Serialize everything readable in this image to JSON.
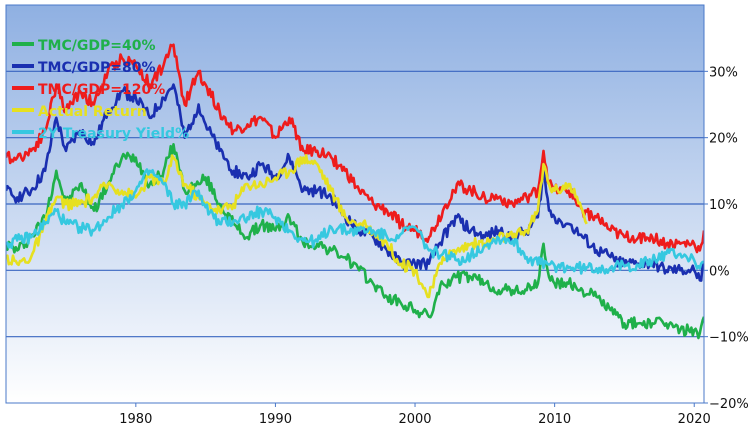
{
  "chart_data": {
    "type": "line",
    "title": "",
    "xlabel": "",
    "ylabel": "",
    "xlim": [
      1970.7,
      2020.7
    ],
    "ylim": [
      -20,
      40
    ],
    "x_ticks": [
      {
        "value": 1980,
        "label": "1980"
      },
      {
        "value": 1990,
        "label": "1990"
      },
      {
        "value": 2000,
        "label": "2000"
      },
      {
        "value": 2010,
        "label": "2010"
      },
      {
        "value": 2020,
        "label": "2020"
      }
    ],
    "y_ticks": [
      {
        "value": 30,
        "label": "30%"
      },
      {
        "value": 20,
        "label": "20%"
      },
      {
        "value": 10,
        "label": "10%"
      },
      {
        "value": 0,
        "label": "0%"
      },
      {
        "value": -10,
        "label": "−10%"
      },
      {
        "value": -20,
        "label": "−20%"
      }
    ],
    "grid": {
      "horizontal": true,
      "vertical": false
    },
    "legend_position": "top-left",
    "background_gradient": [
      "#8fb0e2",
      "#ffffff"
    ],
    "series": [
      {
        "name": "TMC/GDP=40%",
        "color": "#1fb04a",
        "points": [
          [
            1970.7,
            4
          ],
          [
            1971.5,
            3
          ],
          [
            1972.5,
            5
          ],
          [
            1973.5,
            8
          ],
          [
            1974.3,
            15
          ],
          [
            1975,
            10
          ],
          [
            1976,
            13
          ],
          [
            1977,
            9
          ],
          [
            1978,
            13
          ],
          [
            1979,
            17
          ],
          [
            1980,
            17
          ],
          [
            1981,
            13
          ],
          [
            1982,
            15
          ],
          [
            1982.7,
            19
          ],
          [
            1983.5,
            12
          ],
          [
            1984.5,
            13
          ],
          [
            1985,
            14
          ],
          [
            1986,
            10
          ],
          [
            1987,
            7
          ],
          [
            1988,
            5
          ],
          [
            1989,
            7
          ],
          [
            1990,
            6
          ],
          [
            1991,
            8
          ],
          [
            1992,
            4
          ],
          [
            1993,
            4
          ],
          [
            1994,
            3
          ],
          [
            1995,
            2
          ],
          [
            1996,
            0
          ],
          [
            1997,
            -2
          ],
          [
            1998,
            -4
          ],
          [
            1999,
            -5
          ],
          [
            2000,
            -6
          ],
          [
            2001,
            -7
          ],
          [
            2002,
            -2
          ],
          [
            2003,
            -1
          ],
          [
            2004,
            -1
          ],
          [
            2005,
            -2
          ],
          [
            2006,
            -3
          ],
          [
            2007,
            -3
          ],
          [
            2008,
            -3
          ],
          [
            2008.8,
            -2
          ],
          [
            2009.2,
            4
          ],
          [
            2009.6,
            -1
          ],
          [
            2010,
            -2
          ],
          [
            2011,
            -2
          ],
          [
            2012,
            -3
          ],
          [
            2013,
            -4
          ],
          [
            2014,
            -6
          ],
          [
            2015,
            -8
          ],
          [
            2016,
            -8
          ],
          [
            2017,
            -8
          ],
          [
            2018,
            -8
          ],
          [
            2019,
            -9
          ],
          [
            2020,
            -9
          ],
          [
            2020.4,
            -9.5
          ],
          [
            2020.7,
            -7
          ]
        ]
      },
      {
        "name": "TMC/GDP=80%",
        "color": "#1a2fb0",
        "points": [
          [
            1970.7,
            12
          ],
          [
            1971.5,
            11
          ],
          [
            1972.5,
            12
          ],
          [
            1973.5,
            15
          ],
          [
            1974.3,
            23
          ],
          [
            1975,
            18
          ],
          [
            1976,
            21
          ],
          [
            1977,
            19
          ],
          [
            1978,
            24
          ],
          [
            1979,
            27
          ],
          [
            1980,
            26
          ],
          [
            1981,
            23
          ],
          [
            1982,
            26
          ],
          [
            1982.7,
            28
          ],
          [
            1983.5,
            20
          ],
          [
            1984.5,
            25
          ],
          [
            1985,
            22
          ],
          [
            1986,
            18
          ],
          [
            1987,
            15
          ],
          [
            1988,
            14
          ],
          [
            1989,
            16
          ],
          [
            1990,
            14
          ],
          [
            1991,
            17
          ],
          [
            1992,
            12
          ],
          [
            1993,
            12
          ],
          [
            1994,
            11
          ],
          [
            1995,
            8
          ],
          [
            1996,
            6
          ],
          [
            1997,
            5
          ],
          [
            1998,
            3
          ],
          [
            1999,
            1
          ],
          [
            2000,
            1
          ],
          [
            2001,
            1
          ],
          [
            2002,
            5
          ],
          [
            2003,
            8
          ],
          [
            2004,
            6
          ],
          [
            2005,
            5
          ],
          [
            2006,
            6
          ],
          [
            2007,
            5
          ],
          [
            2008,
            6
          ],
          [
            2008.8,
            8
          ],
          [
            2009.2,
            15
          ],
          [
            2009.6,
            9
          ],
          [
            2010,
            8
          ],
          [
            2011,
            7
          ],
          [
            2012,
            5
          ],
          [
            2013,
            3
          ],
          [
            2014,
            2
          ],
          [
            2015,
            1
          ],
          [
            2016,
            1
          ],
          [
            2017,
            1
          ],
          [
            2018,
            0
          ],
          [
            2019,
            0
          ],
          [
            2020,
            0
          ],
          [
            2020.4,
            -1.5
          ],
          [
            2020.7,
            1
          ]
        ]
      },
      {
        "name": "TMC/GDP=120%",
        "color": "#ee1c1c",
        "points": [
          [
            1970.7,
            17
          ],
          [
            1971.5,
            17
          ],
          [
            1972.5,
            18
          ],
          [
            1973.5,
            21
          ],
          [
            1974.3,
            28
          ],
          [
            1975,
            24
          ],
          [
            1976,
            27
          ],
          [
            1977,
            25
          ],
          [
            1978,
            30
          ],
          [
            1979,
            32
          ],
          [
            1980,
            31
          ],
          [
            1981,
            28
          ],
          [
            1982,
            31
          ],
          [
            1982.7,
            34
          ],
          [
            1983.5,
            25
          ],
          [
            1984.5,
            30
          ],
          [
            1985,
            28
          ],
          [
            1986,
            24
          ],
          [
            1987,
            21
          ],
          [
            1988,
            22
          ],
          [
            1989,
            23
          ],
          [
            1990,
            20
          ],
          [
            1991,
            23
          ],
          [
            1992,
            18
          ],
          [
            1993,
            18
          ],
          [
            1994,
            17
          ],
          [
            1995,
            15
          ],
          [
            1996,
            12
          ],
          [
            1997,
            10
          ],
          [
            1998,
            9
          ],
          [
            1999,
            7
          ],
          [
            2000,
            6
          ],
          [
            2001,
            5
          ],
          [
            2002,
            9
          ],
          [
            2003,
            13
          ],
          [
            2004,
            12
          ],
          [
            2005,
            11
          ],
          [
            2006,
            11
          ],
          [
            2007,
            10
          ],
          [
            2008,
            11
          ],
          [
            2008.8,
            12
          ],
          [
            2009.2,
            18
          ],
          [
            2009.6,
            13
          ],
          [
            2010,
            12
          ],
          [
            2011,
            12
          ],
          [
            2012,
            9
          ],
          [
            2013,
            8
          ],
          [
            2014,
            6
          ],
          [
            2015,
            5
          ],
          [
            2016,
            5
          ],
          [
            2017,
            5
          ],
          [
            2018,
            4
          ],
          [
            2019,
            4
          ],
          [
            2020,
            4
          ],
          [
            2020.4,
            3
          ],
          [
            2020.7,
            6
          ]
        ]
      },
      {
        "name": "Actual Return",
        "color": "#e6e020",
        "points": [
          [
            1970.7,
            2
          ],
          [
            1971.5,
            1
          ],
          [
            1972.5,
            2
          ],
          [
            1973.5,
            7
          ],
          [
            1974.3,
            11
          ],
          [
            1975,
            10
          ],
          [
            1976,
            10
          ],
          [
            1977,
            11
          ],
          [
            1978,
            13
          ],
          [
            1979,
            12
          ],
          [
            1980,
            11
          ],
          [
            1981,
            14
          ],
          [
            1982,
            13
          ],
          [
            1982.7,
            17
          ],
          [
            1983.5,
            13
          ],
          [
            1984.5,
            11
          ],
          [
            1985,
            10
          ],
          [
            1986,
            9
          ],
          [
            1987,
            10
          ],
          [
            1988,
            13
          ],
          [
            1989,
            13
          ],
          [
            1990,
            14
          ],
          [
            1991,
            15
          ],
          [
            1992,
            17
          ],
          [
            1993,
            16
          ],
          [
            1994,
            12
          ],
          [
            1995,
            8
          ],
          [
            1996,
            7
          ],
          [
            1997,
            6
          ],
          [
            1998,
            4
          ],
          [
            1999,
            1
          ],
          [
            2000,
            0
          ],
          [
            2001,
            -4
          ],
          [
            2002,
            2
          ],
          [
            2003,
            3
          ],
          [
            2004,
            4
          ],
          [
            2005,
            4
          ],
          [
            2006,
            5
          ],
          [
            2007,
            5
          ],
          [
            2008,
            6
          ],
          [
            2008.8,
            9
          ],
          [
            2009.2,
            16
          ],
          [
            2009.6,
            13
          ],
          [
            2010,
            12
          ],
          [
            2011,
            13
          ],
          [
            2012,
            9
          ],
          [
            2012.3,
            7
          ]
        ]
      },
      {
        "name": "2Y Treasury Yield%",
        "color": "#36c8e0",
        "points": [
          [
            1970.7,
            4
          ],
          [
            1971.5,
            4.5
          ],
          [
            1972.5,
            5
          ],
          [
            1973.5,
            7
          ],
          [
            1974.3,
            9
          ],
          [
            1975,
            7
          ],
          [
            1976,
            6.5
          ],
          [
            1977,
            6
          ],
          [
            1978,
            8
          ],
          [
            1979,
            10
          ],
          [
            1980,
            12
          ],
          [
            1981,
            15
          ],
          [
            1982,
            13
          ],
          [
            1982.7,
            10
          ],
          [
            1983.5,
            10
          ],
          [
            1984.5,
            12
          ],
          [
            1985,
            9.5
          ],
          [
            1986,
            7
          ],
          [
            1987,
            7.5
          ],
          [
            1988,
            8
          ],
          [
            1989,
            9
          ],
          [
            1990,
            8
          ],
          [
            1991,
            6
          ],
          [
            1992,
            4.5
          ],
          [
            1993,
            4.3
          ],
          [
            1994,
            6.5
          ],
          [
            1995,
            6
          ],
          [
            1996,
            6
          ],
          [
            1997,
            6
          ],
          [
            1998,
            5
          ],
          [
            1999,
            5.5
          ],
          [
            2000,
            6.5
          ],
          [
            2001,
            3
          ],
          [
            2002,
            2.5
          ],
          [
            2003,
            1.5
          ],
          [
            2004,
            2.2
          ],
          [
            2005,
            3.8
          ],
          [
            2006,
            4.8
          ],
          [
            2007,
            4.5
          ],
          [
            2008,
            2
          ],
          [
            2009,
            1
          ],
          [
            2010,
            0.7
          ],
          [
            2011,
            0.4
          ],
          [
            2012,
            0.3
          ],
          [
            2013,
            0.3
          ],
          [
            2014,
            0.4
          ],
          [
            2015,
            0.6
          ],
          [
            2016,
            0.8
          ],
          [
            2017,
            1.4
          ],
          [
            2018,
            2.5
          ],
          [
            2019,
            2.5
          ],
          [
            2020,
            1.5
          ],
          [
            2020.4,
            0.3
          ],
          [
            2020.7,
            1.2
          ]
        ]
      }
    ]
  }
}
